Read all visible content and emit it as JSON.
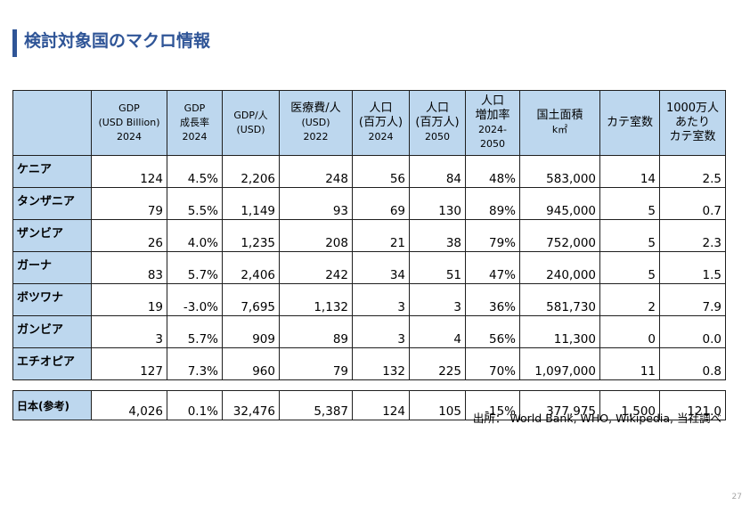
{
  "slide": {
    "title": "検討対象国のマクロ情報",
    "source": "出所： World Bank, WHO, Wikipedia, 当社調べ",
    "page_number": "27",
    "accent_color": "#2f5597",
    "header_fill_color": "#bdd7ee"
  },
  "table": {
    "headers": [
      {
        "lines": [
          ""
        ]
      },
      {
        "lines": [
          "GDP",
          "(USD Billion)",
          "2024"
        ]
      },
      {
        "lines": [
          "GDP",
          "成長率",
          "2024"
        ]
      },
      {
        "lines": [
          "GDP/人",
          "(USD)"
        ]
      },
      {
        "lines": [
          "医療費/人",
          "(USD)",
          "2022"
        ]
      },
      {
        "lines": [
          "人口",
          "(百万人)",
          "2024"
        ]
      },
      {
        "lines": [
          "人口",
          "(百万人)",
          "2050"
        ]
      },
      {
        "lines": [
          "人口",
          "増加率",
          "2024-",
          "2050"
        ]
      },
      {
        "lines": [
          "国土面積",
          "k㎡"
        ]
      },
      {
        "lines": [
          "カテ室数"
        ]
      },
      {
        "lines": [
          "1000万人",
          "あたり",
          "カテ室数"
        ]
      }
    ],
    "rows": [
      {
        "country": "ケニア",
        "values": [
          "124",
          "4.5%",
          "2,206",
          "248",
          "56",
          "84",
          "48%",
          "583,000",
          "14",
          "2.5"
        ]
      },
      {
        "country": "タンザニア",
        "values": [
          "79",
          "5.5%",
          "1,149",
          "93",
          "69",
          "130",
          "89%",
          "945,000",
          "5",
          "0.7"
        ]
      },
      {
        "country": "ザンビア",
        "values": [
          "26",
          "4.0%",
          "1,235",
          "208",
          "21",
          "38",
          "79%",
          "752,000",
          "5",
          "2.3"
        ]
      },
      {
        "country": "ガーナ",
        "values": [
          "83",
          "5.7%",
          "2,406",
          "242",
          "34",
          "51",
          "47%",
          "240,000",
          "5",
          "1.5"
        ]
      },
      {
        "country": "ボツワナ",
        "values": [
          "19",
          "-3.0%",
          "7,695",
          "1,132",
          "3",
          "3",
          "36%",
          "581,730",
          "2",
          "7.9"
        ]
      },
      {
        "country": "ガンビア",
        "values": [
          "3",
          "5.7%",
          "909",
          "89",
          "3",
          "4",
          "56%",
          "11,300",
          "0",
          "0.0"
        ]
      },
      {
        "country": "エチオピア",
        "values": [
          "127",
          "7.3%",
          "960",
          "79",
          "132",
          "225",
          "70%",
          "1,097,000",
          "11",
          "0.8"
        ]
      }
    ],
    "reference_row": {
      "country": "日本(参考)",
      "values": [
        "4,026",
        "0.1%",
        "32,476",
        "5,387",
        "124",
        "105",
        "-15%",
        "377,975",
        "1,500",
        "121.0"
      ]
    }
  }
}
